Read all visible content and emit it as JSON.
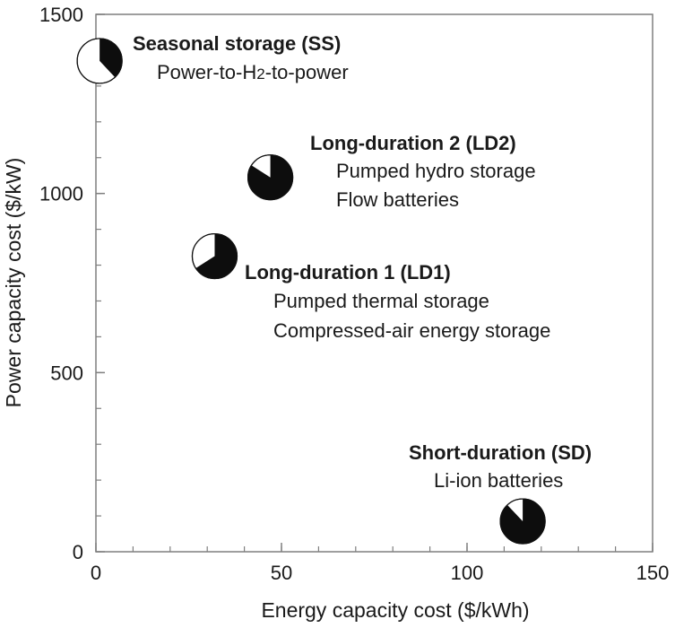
{
  "chart_data": {
    "type": "scatter",
    "xlabel": "Energy capacity cost ($/kWh)",
    "ylabel": "Power capacity cost ($/kW)",
    "xlim": [
      0,
      150
    ],
    "ylim": [
      0,
      1500
    ],
    "x_ticks": [
      "0",
      "50",
      "100",
      "150"
    ],
    "y_ticks": [
      "0",
      "500",
      "1000",
      "1500"
    ],
    "x_minor_step": 10,
    "y_minor_step": 100,
    "grid": false,
    "marker": "pie",
    "points": [
      {
        "key": "ss",
        "name": "Seasonal storage (SS)",
        "technologies": [
          "Power-to-H",
          "2",
          "-to-power"
        ],
        "x": 1,
        "y": 1370,
        "filled_fraction": 0.38
      },
      {
        "key": "ld2",
        "name": "Long-duration 2 (LD2)",
        "technologies": [
          "Pumped hydro storage",
          "Flow batteries"
        ],
        "x": 47,
        "y": 1045,
        "filled_fraction": 0.84
      },
      {
        "key": "ld1",
        "name": "Long-duration 1 (LD1)",
        "technologies": [
          "Pumped thermal storage",
          "Compressed-air energy storage"
        ],
        "x": 32,
        "y": 825,
        "filled_fraction": 0.66
      },
      {
        "key": "sd",
        "name": "Short-duration (SD)",
        "technologies": [
          "Li-ion batteries"
        ],
        "x": 115,
        "y": 85,
        "filled_fraction": 0.88
      }
    ],
    "colors": {
      "filled": "#0d0d0d",
      "empty": "#ffffff",
      "axis": "#7f7f7f",
      "text": "#1a1a1a"
    }
  }
}
